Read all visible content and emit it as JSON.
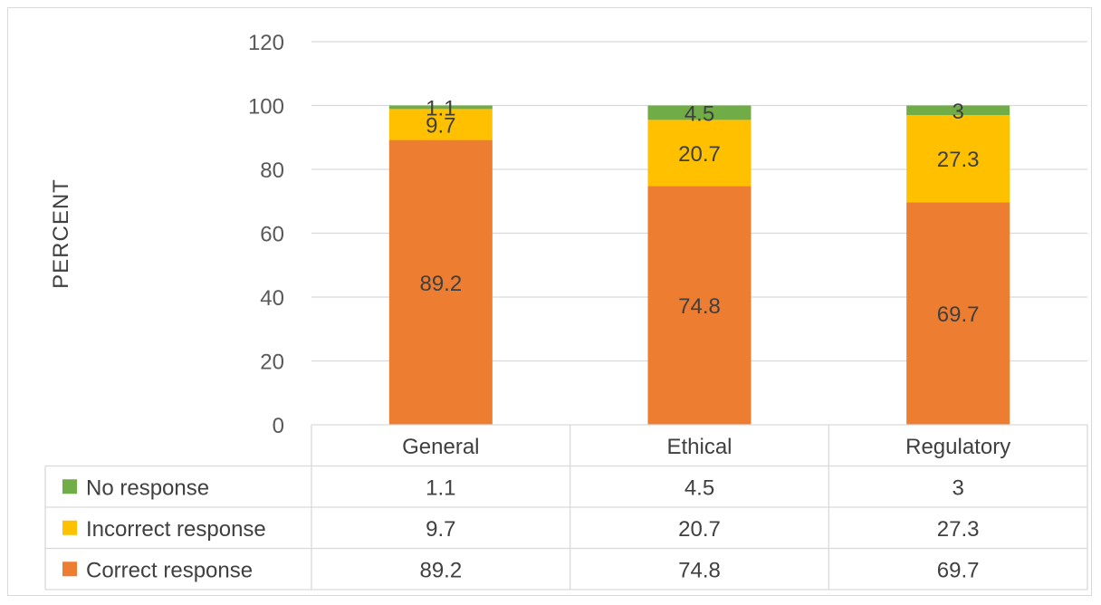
{
  "chart_data": {
    "type": "bar",
    "stacked": true,
    "categories": [
      "General",
      "Ethical",
      "Regulatory"
    ],
    "series": [
      {
        "name": "Correct response",
        "color": "#ED7D31",
        "values": [
          89.2,
          74.8,
          69.7
        ]
      },
      {
        "name": "Incorrect response",
        "color": "#FFC000",
        "values": [
          9.7,
          20.7,
          27.3
        ]
      },
      {
        "name": "No response",
        "color": "#70AD47",
        "values": [
          1.1,
          4.5,
          3
        ]
      }
    ],
    "ylabel": "PERCENT",
    "xlabel": "",
    "ylim": [
      0,
      120
    ],
    "yticks": [
      0,
      20,
      40,
      60,
      80,
      100,
      120
    ],
    "grid": true,
    "data_table": true,
    "data_table_order": [
      "No response",
      "Incorrect response",
      "Correct response"
    ],
    "colors": {
      "gridline": "#D9D9D9",
      "text": "#404040",
      "tick_text": "#595959"
    }
  }
}
